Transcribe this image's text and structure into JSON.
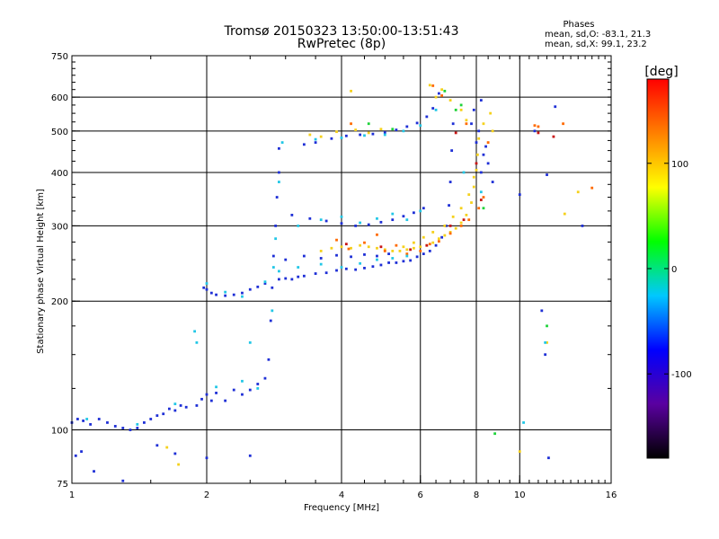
{
  "chart_data": {
    "type": "scatter",
    "title": "Tromsø 20150323 13:50:00-13:51:43",
    "subtitle": "RwPretec (8p)",
    "xlabel": "Frequency [MHz]",
    "ylabel": "Stationary phase Virtual Height [km]",
    "x_scale": "log",
    "y_scale": "log",
    "xlim": [
      1,
      16
    ],
    "ylim": [
      75,
      750
    ],
    "xticks": [
      "1",
      "2",
      "4",
      "6",
      "8",
      "10",
      "16"
    ],
    "yticks": [
      "75",
      "100",
      "200",
      "300",
      "400",
      "500",
      "600",
      "750"
    ],
    "grid": true,
    "stats": {
      "heading": "Phases",
      "line_o": "mean, sd,O: -83.1, 21.3",
      "line_x": "mean, sd,X:  99.1, 23.2"
    },
    "colorbar": {
      "label": "[deg]",
      "range": [
        -180,
        180
      ],
      "ticks": [
        "100",
        "0",
        "-100"
      ],
      "colors": [
        "#000000",
        "#5a00a0",
        "#0000ff",
        "#00c8ff",
        "#00ff00",
        "#ffff00",
        "#ff8000",
        "#ff0000"
      ]
    },
    "series": [
      {
        "color": "#1e2fd6",
        "points": [
          [
            1.0,
            104
          ],
          [
            1.03,
            106
          ],
          [
            1.06,
            105
          ],
          [
            1.1,
            103
          ],
          [
            1.15,
            106
          ],
          [
            1.2,
            104
          ],
          [
            1.25,
            102
          ],
          [
            1.3,
            101
          ],
          [
            1.35,
            100
          ],
          [
            1.4,
            101
          ],
          [
            1.45,
            104
          ],
          [
            1.5,
            106
          ],
          [
            1.55,
            108
          ],
          [
            1.6,
            109
          ],
          [
            1.65,
            112
          ],
          [
            1.7,
            111
          ],
          [
            1.75,
            114
          ],
          [
            1.8,
            113
          ],
          [
            1.9,
            114
          ],
          [
            1.95,
            118
          ],
          [
            2.0,
            121
          ],
          [
            2.05,
            117
          ],
          [
            2.1,
            122
          ],
          [
            2.2,
            117
          ],
          [
            2.3,
            124
          ],
          [
            2.4,
            121
          ],
          [
            2.5,
            124
          ],
          [
            2.6,
            128
          ],
          [
            2.7,
            132
          ],
          [
            2.75,
            146
          ],
          [
            2.78,
            180
          ],
          [
            2.8,
            215
          ],
          [
            2.82,
            255
          ],
          [
            2.85,
            300
          ],
          [
            2.87,
            350
          ],
          [
            2.9,
            400
          ],
          [
            2.9,
            455
          ],
          [
            1.97,
            215
          ],
          [
            2.0,
            213
          ],
          [
            2.05,
            209
          ],
          [
            2.1,
            207
          ],
          [
            2.2,
            206
          ],
          [
            2.3,
            207
          ],
          [
            2.4,
            209
          ],
          [
            2.5,
            213
          ],
          [
            2.6,
            216
          ],
          [
            2.7,
            220
          ],
          [
            2.9,
            225
          ],
          [
            3.0,
            226
          ],
          [
            3.1,
            225
          ],
          [
            3.2,
            228
          ],
          [
            3.3,
            229
          ],
          [
            3.5,
            232
          ],
          [
            3.7,
            233
          ],
          [
            3.9,
            236
          ],
          [
            4.1,
            238
          ],
          [
            4.3,
            237
          ],
          [
            4.5,
            239
          ],
          [
            4.7,
            241
          ],
          [
            4.9,
            243
          ],
          [
            5.1,
            246
          ],
          [
            5.3,
            246
          ],
          [
            5.5,
            248
          ],
          [
            5.7,
            249
          ],
          [
            5.9,
            254
          ],
          [
            6.1,
            258
          ],
          [
            6.3,
            262
          ],
          [
            6.5,
            270
          ],
          [
            6.7,
            282
          ],
          [
            6.85,
            300
          ],
          [
            6.95,
            335
          ],
          [
            7.0,
            380
          ],
          [
            7.05,
            450
          ],
          [
            7.1,
            520
          ],
          [
            3.3,
            465
          ],
          [
            3.5,
            470
          ],
          [
            3.8,
            480
          ],
          [
            4.1,
            487
          ],
          [
            4.4,
            490
          ],
          [
            4.7,
            492
          ],
          [
            5.0,
            496
          ],
          [
            5.3,
            503
          ],
          [
            5.6,
            512
          ],
          [
            5.9,
            522
          ],
          [
            6.2,
            540
          ],
          [
            6.4,
            565
          ],
          [
            6.6,
            612
          ],
          [
            3.1,
            318
          ],
          [
            3.4,
            312
          ],
          [
            3.7,
            308
          ],
          [
            4.0,
            304
          ],
          [
            4.3,
            300
          ],
          [
            4.6,
            302
          ],
          [
            4.9,
            306
          ],
          [
            5.2,
            310
          ],
          [
            5.5,
            316
          ],
          [
            5.8,
            322
          ],
          [
            6.1,
            330
          ],
          [
            3.0,
            250
          ],
          [
            3.3,
            255
          ],
          [
            3.6,
            252
          ],
          [
            3.9,
            256
          ],
          [
            4.2,
            254
          ],
          [
            4.5,
            257
          ],
          [
            4.8,
            255
          ],
          [
            5.1,
            258
          ],
          [
            8.2,
            400
          ],
          [
            8.3,
            440
          ],
          [
            8.4,
            460
          ],
          [
            8.5,
            420
          ],
          [
            8.7,
            380
          ],
          [
            7.8,
            520
          ],
          [
            8.0,
            470
          ],
          [
            8.1,
            500
          ],
          [
            7.9,
            560
          ],
          [
            8.2,
            590
          ],
          [
            1.02,
            87
          ],
          [
            1.05,
            89
          ],
          [
            1.12,
            80
          ],
          [
            1.3,
            76
          ],
          [
            1.55,
            92
          ],
          [
            1.7,
            88
          ],
          [
            2.0,
            86
          ],
          [
            2.5,
            87
          ],
          [
            10.0,
            355
          ],
          [
            10.8,
            500
          ],
          [
            11.4,
            150
          ],
          [
            11.5,
            395
          ],
          [
            11.6,
            86
          ],
          [
            12.0,
            570
          ],
          [
            13.8,
            300
          ],
          [
            11.2,
            190
          ]
        ]
      },
      {
        "color": "#f5d11c",
        "points": [
          [
            3.6,
            262
          ],
          [
            3.8,
            266
          ],
          [
            4.0,
            268
          ],
          [
            4.2,
            266
          ],
          [
            4.4,
            270
          ],
          [
            4.6,
            268
          ],
          [
            4.8,
            266
          ],
          [
            5.0,
            264
          ],
          [
            5.2,
            262
          ],
          [
            5.4,
            262
          ],
          [
            5.6,
            264
          ],
          [
            5.8,
            266
          ],
          [
            6.0,
            268
          ],
          [
            6.2,
            270
          ],
          [
            6.4,
            274
          ],
          [
            6.6,
            280
          ],
          [
            6.8,
            285
          ],
          [
            7.0,
            290
          ],
          [
            7.2,
            296
          ],
          [
            7.4,
            305
          ],
          [
            7.6,
            318
          ],
          [
            7.8,
            340
          ],
          [
            7.9,
            370
          ],
          [
            8.0,
            405
          ],
          [
            8.05,
            440
          ],
          [
            8.1,
            480
          ],
          [
            5.5,
            268
          ],
          [
            5.8,
            274
          ],
          [
            6.1,
            282
          ],
          [
            6.4,
            290
          ],
          [
            6.8,
            300
          ],
          [
            7.1,
            315
          ],
          [
            7.4,
            330
          ],
          [
            7.7,
            355
          ],
          [
            7.9,
            390
          ],
          [
            3.4,
            490
          ],
          [
            3.6,
            485
          ],
          [
            3.9,
            498
          ],
          [
            4.3,
            503
          ],
          [
            4.6,
            495
          ],
          [
            4.9,
            505
          ],
          [
            6.3,
            640
          ],
          [
            6.5,
            600
          ],
          [
            6.7,
            625
          ],
          [
            7.0,
            590
          ],
          [
            7.4,
            560
          ],
          [
            7.6,
            530
          ],
          [
            8.3,
            520
          ],
          [
            8.6,
            550
          ],
          [
            8.7,
            500
          ],
          [
            4.2,
            620
          ],
          [
            1.63,
            91
          ],
          [
            1.73,
            83
          ],
          [
            10.0,
            89
          ],
          [
            13.5,
            360
          ],
          [
            12.6,
            320
          ],
          [
            11.5,
            160
          ]
        ]
      },
      {
        "color": "#ff6a00",
        "points": [
          [
            3.9,
            278
          ],
          [
            4.15,
            265
          ],
          [
            4.5,
            274
          ],
          [
            4.8,
            286
          ],
          [
            5.0,
            262
          ],
          [
            5.3,
            270
          ],
          [
            5.6,
            258
          ],
          [
            6.0,
            262
          ],
          [
            6.3,
            272
          ],
          [
            6.6,
            276
          ],
          [
            7.0,
            288
          ],
          [
            7.4,
            300
          ],
          [
            7.7,
            310
          ],
          [
            8.1,
            330
          ],
          [
            8.3,
            350
          ],
          [
            6.4,
            638
          ],
          [
            6.7,
            605
          ],
          [
            7.6,
            520
          ],
          [
            8.5,
            470
          ],
          [
            11.0,
            512
          ],
          [
            12.5,
            520
          ],
          [
            14.5,
            368
          ],
          [
            10.8,
            515
          ],
          [
            4.2,
            520
          ]
        ]
      },
      {
        "color": "#c81414",
        "points": [
          [
            4.1,
            272
          ],
          [
            4.9,
            268
          ],
          [
            5.7,
            264
          ],
          [
            6.2,
            270
          ],
          [
            7.0,
            300
          ],
          [
            7.5,
            310
          ],
          [
            8.2,
            345
          ],
          [
            8.0,
            420
          ],
          [
            7.2,
            495
          ],
          [
            11.9,
            485
          ],
          [
            11.0,
            495
          ]
        ]
      },
      {
        "color": "#22c7e6",
        "points": [
          [
            1.08,
            106
          ],
          [
            1.4,
            103
          ],
          [
            1.7,
            115
          ],
          [
            2.1,
            126
          ],
          [
            2.4,
            130
          ],
          [
            2.6,
            125
          ],
          [
            2.8,
            190
          ],
          [
            2.82,
            240
          ],
          [
            2.85,
            280
          ],
          [
            2.9,
            380
          ],
          [
            2.95,
            470
          ],
          [
            2.9,
            235
          ],
          [
            3.2,
            240
          ],
          [
            3.6,
            244
          ],
          [
            4.0,
            240
          ],
          [
            4.4,
            245
          ],
          [
            4.8,
            250
          ],
          [
            5.2,
            252
          ],
          [
            5.6,
            255
          ],
          [
            3.2,
            300
          ],
          [
            3.6,
            310
          ],
          [
            4.0,
            315
          ],
          [
            4.4,
            305
          ],
          [
            4.8,
            312
          ],
          [
            5.2,
            320
          ],
          [
            5.6,
            310
          ],
          [
            6.0,
            325
          ],
          [
            3.5,
            478
          ],
          [
            4.0,
            482
          ],
          [
            4.5,
            488
          ],
          [
            5.0,
            490
          ],
          [
            5.5,
            500
          ],
          [
            6.0,
            515
          ],
          [
            6.5,
            560
          ],
          [
            2.0,
            220
          ],
          [
            2.2,
            210
          ],
          [
            2.4,
            205
          ],
          [
            2.7,
            222
          ],
          [
            7.5,
            400
          ],
          [
            8.2,
            360
          ],
          [
            11.4,
            160
          ],
          [
            10.2,
            104
          ],
          [
            1.9,
            160
          ],
          [
            1.88,
            170
          ],
          [
            2.5,
            160
          ]
        ]
      },
      {
        "color": "#1fd33a",
        "points": [
          [
            6.8,
            620
          ],
          [
            7.4,
            575
          ],
          [
            7.2,
            560
          ],
          [
            8.3,
            330
          ],
          [
            4.6,
            520
          ],
          [
            5.2,
            505
          ],
          [
            8.8,
            98
          ],
          [
            11.5,
            175
          ]
        ]
      }
    ]
  }
}
